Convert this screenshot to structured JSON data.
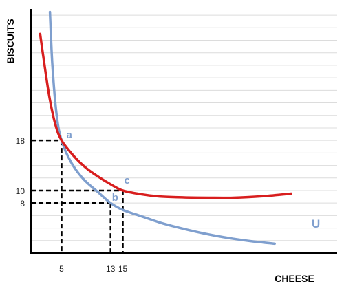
{
  "chart_data": {
    "type": "line",
    "xlabel": "CHEESE",
    "ylabel": "BISCUITS",
    "xlim": [
      0,
      50
    ],
    "ylim": [
      0,
      39
    ],
    "grid": true,
    "series": [
      {
        "name": "U",
        "color": "#7f9fce",
        "x": [
          3.1,
          3.5,
          4.2,
          5,
          6.5,
          8.5,
          11,
          13,
          15,
          18,
          21,
          24,
          27,
          30,
          33,
          36,
          39.8
        ],
        "y": [
          38.5,
          30,
          22,
          18,
          14.6,
          11.9,
          9.7,
          8,
          6.9,
          5.9,
          4.9,
          4.1,
          3.4,
          2.8,
          2.3,
          1.9,
          1.5
        ]
      },
      {
        "name": "",
        "color": "#d81e1e",
        "x": [
          1.5,
          2,
          3,
          4,
          5,
          7,
          9,
          11,
          13,
          15,
          18,
          21,
          25,
          29,
          33,
          38,
          42.5
        ],
        "y": [
          35,
          31.5,
          25,
          20.5,
          18,
          15.5,
          13.6,
          12.2,
          11,
          10,
          9.4,
          9.05,
          8.9,
          8.85,
          8.85,
          9.1,
          9.5
        ]
      }
    ],
    "points": [
      {
        "label": "a",
        "x": 5,
        "y": 18
      },
      {
        "label": "b",
        "x": 13,
        "y": 8
      },
      {
        "label": "c",
        "x": 15,
        "y": 10
      }
    ],
    "x_ticks": [
      {
        "value": 5,
        "label": "5"
      },
      {
        "value": 13,
        "label": "13"
      },
      {
        "value": 15,
        "label": "15"
      }
    ],
    "y_ticks": [
      {
        "value": 18,
        "label": "18"
      },
      {
        "value": 10,
        "label": "10"
      },
      {
        "value": 8,
        "label": "8"
      }
    ],
    "curve_label": "U"
  }
}
